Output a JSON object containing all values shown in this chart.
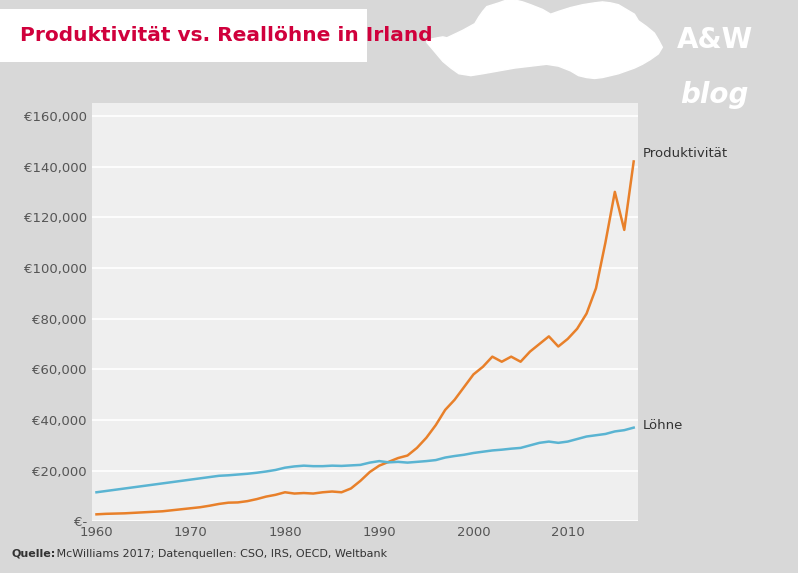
{
  "title": "Produktivität vs. Reallöhne in Irland",
  "title_color": "#d0003c",
  "title_bg": "#ffffff",
  "source_bold": "Quelle:",
  "source_rest": " McWilliams 2017; Datenquellen: CSO, IRS, OECD, Weltbank",
  "outer_bg_color": "#d8d8d8",
  "plot_bg_color": "#efefef",
  "header_bg_color": "#d8d8d8",
  "label_produktivitaet": "Produktivität",
  "label_loehne": "Löhne",
  "color_produktivitaet": "#e8802a",
  "color_loehne": "#5ab4d2",
  "ylim": [
    0,
    165000
  ],
  "yticks": [
    0,
    20000,
    40000,
    60000,
    80000,
    100000,
    120000,
    140000,
    160000
  ],
  "ytick_labels": [
    "€-",
    "€20,000",
    "€40,000",
    "€60,000",
    "€80,000",
    "€100,000",
    "€120,000",
    "€140,000",
    "€160,000"
  ],
  "xlim": [
    1959.5,
    2017.5
  ],
  "xticks": [
    1960,
    1970,
    1980,
    1990,
    2000,
    2010
  ],
  "years": [
    1960,
    1961,
    1962,
    1963,
    1964,
    1965,
    1966,
    1967,
    1968,
    1969,
    1970,
    1971,
    1972,
    1973,
    1974,
    1975,
    1976,
    1977,
    1978,
    1979,
    1980,
    1981,
    1982,
    1983,
    1984,
    1985,
    1986,
    1987,
    1988,
    1989,
    1990,
    1991,
    1992,
    1993,
    1994,
    1995,
    1996,
    1997,
    1998,
    1999,
    2000,
    2001,
    2002,
    2003,
    2004,
    2005,
    2006,
    2007,
    2008,
    2009,
    2010,
    2011,
    2012,
    2013,
    2014,
    2015,
    2016,
    2017
  ],
  "produktivitaet": [
    2800,
    3000,
    3100,
    3200,
    3400,
    3600,
    3800,
    4000,
    4400,
    4800,
    5200,
    5600,
    6200,
    6900,
    7400,
    7500,
    8000,
    8800,
    9800,
    10500,
    11500,
    11000,
    11200,
    11000,
    11500,
    11800,
    11500,
    13000,
    16000,
    19500,
    22000,
    23500,
    25000,
    26000,
    29000,
    33000,
    38000,
    44000,
    48000,
    53000,
    58000,
    61000,
    65000,
    63000,
    65000,
    63000,
    67000,
    70000,
    73000,
    69000,
    72000,
    76000,
    82000,
    92000,
    110000,
    130000,
    115000,
    142000
  ],
  "loehne": [
    11500,
    12000,
    12500,
    13000,
    13500,
    14000,
    14500,
    15000,
    15500,
    16000,
    16500,
    17000,
    17500,
    18000,
    18200,
    18500,
    18800,
    19200,
    19700,
    20300,
    21200,
    21700,
    22000,
    21800,
    21800,
    22000,
    21900,
    22100,
    22300,
    23200,
    23800,
    23300,
    23500,
    23200,
    23500,
    23800,
    24200,
    25200,
    25800,
    26300,
    27000,
    27500,
    28000,
    28300,
    28700,
    29000,
    30000,
    31000,
    31500,
    31000,
    31500,
    32500,
    33500,
    34000,
    34500,
    35500,
    36000,
    37000
  ],
  "logo_red": "#d0003c",
  "aw_text": "A&W",
  "blog_text": "blog"
}
